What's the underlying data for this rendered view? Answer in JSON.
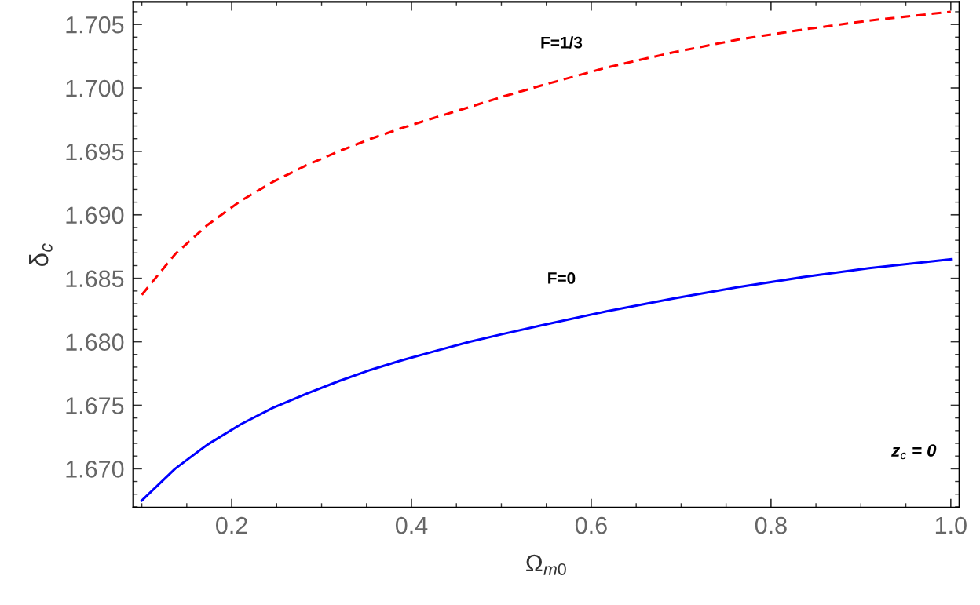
{
  "chart_data": {
    "type": "line",
    "xlabel": "Ω$_{m0}$",
    "ylabel": "δ$_{c}$",
    "xlim": [
      0.0905,
      1.0096
    ],
    "xticks": [
      0.2,
      0.4,
      0.6,
      0.8,
      {
        "value": 1.0,
        "label": "1.0"
      }
    ],
    "ylim": [
      1.66694,
      1.70678
    ],
    "yticks": [
      {
        "value": 1.67,
        "label": "1.670"
      },
      1.675,
      {
        "value": 1.68,
        "label": "1.680"
      },
      1.685,
      {
        "value": 1.69,
        "label": "1.690"
      },
      1.695,
      {
        "value": 1.7,
        "label": "1.700"
      },
      1.705
    ],
    "grid": false,
    "legend": false,
    "series": [
      {
        "name": "F=1/3",
        "color": "#ff0000",
        "line_style": "dashed",
        "x": [
          0.1,
          0.137,
          0.173,
          0.21,
          0.246,
          0.283,
          0.319,
          0.355,
          0.392,
          0.428,
          0.465,
          0.501,
          0.545,
          0.617,
          0.691,
          0.763,
          0.836,
          0.909,
          1.0
        ],
        "values": [
          1.6837,
          1.6869,
          1.6892,
          1.6911,
          1.6926,
          1.6939,
          1.695,
          1.696,
          1.6969,
          1.6977,
          1.6985,
          1.6993,
          1.7002,
          1.7016,
          1.7028,
          1.7038,
          1.7046,
          1.7053,
          1.706
        ]
      },
      {
        "name": "F=0",
        "color": "#0000ff",
        "line_style": "solid",
        "x": [
          0.1,
          0.137,
          0.173,
          0.21,
          0.246,
          0.283,
          0.319,
          0.355,
          0.392,
          0.428,
          0.465,
          0.501,
          0.545,
          0.617,
          0.691,
          0.763,
          0.836,
          0.909,
          1.0
        ],
        "values": [
          1.6675,
          1.67,
          1.6719,
          1.6735,
          1.6748,
          1.6759,
          1.6769,
          1.6778,
          1.6786,
          1.6793,
          1.68,
          1.6806,
          1.6813,
          1.6824,
          1.6834,
          1.6843,
          1.6851,
          1.6858,
          1.6865
        ]
      }
    ],
    "annotations": [
      "z$_{c}$ = 0"
    ]
  }
}
